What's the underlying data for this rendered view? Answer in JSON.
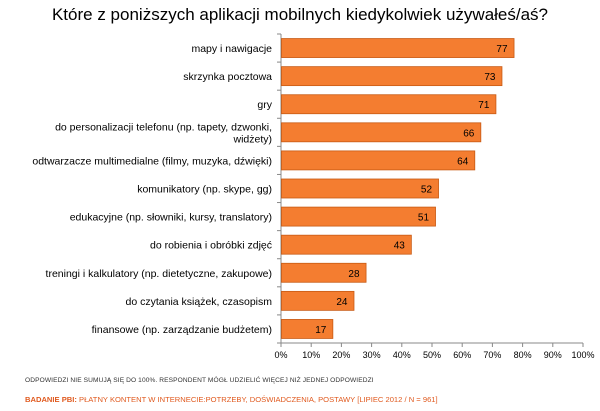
{
  "chart_data": {
    "type": "bar",
    "orientation": "horizontal",
    "title": "Które z poniższych aplikacji mobilnych kiedykolwiek używałeś/aś?",
    "categories": [
      [
        "mapy i nawigacje"
      ],
      [
        "skrzynka pocztowa"
      ],
      [
        "gry"
      ],
      [
        "do personalizacji telefonu (np. tapety, dzwonki,",
        "widżety)"
      ],
      [
        "odtwarzacze multimedialne (filmy, muzyka, dźwięki)"
      ],
      [
        "komunikatory (np. skype, gg)"
      ],
      [
        "edukacyjne (np. słowniki, kursy, translatory)"
      ],
      [
        "do robienia i obróbki zdjęć"
      ],
      [
        "treningi i kalkulatory (np. dietetyczne, zakupowe)"
      ],
      [
        "do czytania książek, czasopism"
      ],
      [
        "finansowe (np. zarządzanie budżetem)"
      ]
    ],
    "values": [
      77,
      73,
      71,
      66,
      64,
      52,
      51,
      43,
      28,
      24,
      17
    ],
    "xlim": [
      0,
      100
    ],
    "xticks": [
      "0%",
      "10%",
      "20%",
      "30%",
      "40%",
      "50%",
      "60%",
      "70%",
      "80%",
      "90%",
      "100%"
    ],
    "grid": false,
    "bar_color": "#f47d30",
    "bar_edge_color": "#c85a14"
  },
  "footer": {
    "note": "ODPOWIEDZI NIE SUMUJĄ SIĘ DO 100%. RESPONDENT MÓGŁ UDZIELIĆ WIĘCEJ NIŻ JEDNEJ ODPOWIEDZI",
    "source_label": "BADANIE PBI:",
    "source_text": " PŁATNY KONTENT W INTERNECIE:POTRZEBY, DOŚWIADCZENIA, POSTAWY [LIPIEC 2012 / N = 961]"
  }
}
